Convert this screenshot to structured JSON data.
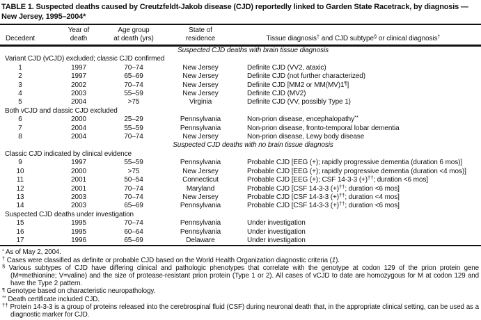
{
  "title": {
    "line1": "TABLE 1. Suspected deaths caused by Creutzfeldt-Jakob disease (CJD) reportedly linked to Garden State Racetrack, by diagnosis —",
    "line2": "New Jersey, 1995–2004*"
  },
  "table": {
    "columns": [
      "Decedent",
      "Year of\ndeath",
      "Age group\nat death (yrs)",
      "State of\nresidence",
      "Tissue diagnosis^{†} and CJD subtype^{§} or clinical diagnosis^{†}"
    ],
    "sections": [
      {
        "heading": "Suspected CJD deaths with brain tissue diagnosis",
        "groups": [
          {
            "label": "Variant CJD (vCJD) excluded; classic CJD confirmed",
            "rows": [
              {
                "decedent": "1",
                "year": "1997",
                "age": "70–74",
                "state": "New Jersey",
                "diagnosis": "Definite CJD (VV2, ataxic)"
              },
              {
                "decedent": "2",
                "year": "1997",
                "age": "65–69",
                "state": "New Jersey",
                "diagnosis": "Definite CJD (not further characterized)"
              },
              {
                "decedent": "3",
                "year": "2002",
                "age": "70–74",
                "state": "New Jersey",
                "diagnosis": "Definite CJD [MM2 or MM(MV)1^{¶}]"
              },
              {
                "decedent": "4",
                "year": "2003",
                "age": "55–59",
                "state": "New Jersey",
                "diagnosis": "Definite CJD (MV2)"
              },
              {
                "decedent": "5",
                "year": "2004",
                "age": ">75",
                "state": "Virginia",
                "diagnosis": "Definite CJD (VV, possibly Type 1)"
              }
            ]
          },
          {
            "label": "Both vCJD and classic CJD excluded",
            "rows": [
              {
                "decedent": "6",
                "year": "2000",
                "age": "25–29",
                "state": "Pennsylvania",
                "diagnosis": "Non-prion disease, encephalopathy^{**}"
              },
              {
                "decedent": "7",
                "year": "2004",
                "age": "55–59",
                "state": "Pennsylvania",
                "diagnosis": "Non-prion disease, fronto-temporal lobar dementia"
              },
              {
                "decedent": "8",
                "year": "2004",
                "age": "70–74",
                "state": "New Jersey",
                "diagnosis": "Non-prion disease, Lewy body disease"
              }
            ]
          }
        ]
      },
      {
        "heading": "Suspected CJD deaths with no brain tissue diagnosis",
        "groups": [
          {
            "label": "Classic CJD indicated by clinical evidence",
            "rows": [
              {
                "decedent": "9",
                "year": "1997",
                "age": "55–59",
                "state": "Pennsylvania",
                "diagnosis": "Probable CJD [EEG (+); rapidly progressive dementia (duration 6 mos)]"
              },
              {
                "decedent": "10",
                "year": "2000",
                "age": ">75",
                "state": "New Jersey",
                "diagnosis": "Probable CJD [EEG (+); rapidly progressive dementia (duration <4 mos)]"
              },
              {
                "decedent": "11",
                "year": "2001",
                "age": "50–54",
                "state": "Connecticut",
                "diagnosis": "Probable CJD [EEG (+); CSF 14-3-3 (+)^{††}; duration <6 mos]"
              },
              {
                "decedent": "12",
                "year": "2001",
                "age": "70–74",
                "state": "Maryland",
                "diagnosis": "Probable CJD [CSF 14-3-3 (+)^{††}; duration <6 mos]"
              },
              {
                "decedent": "13",
                "year": "2003",
                "age": "70–74",
                "state": "New Jersey",
                "diagnosis": "Probable CJD [CSF 14-3-3 (+)^{††}; duration <4 mos]"
              },
              {
                "decedent": "14",
                "year": "2003",
                "age": "65–69",
                "state": "Pennsylvania",
                "diagnosis": "Probable CJD [CSF 14-3-3 (+)^{††}; duration <6 mos]"
              }
            ]
          },
          {
            "label": "Suspected CJD deaths under investigation",
            "rows": [
              {
                "decedent": "15",
                "year": "1995",
                "age": "70–74",
                "state": "Pennsylvania",
                "diagnosis": "Under investigation"
              },
              {
                "decedent": "16",
                "year": "1995",
                "age": "60–64",
                "state": "Pennsylvania",
                "diagnosis": "Under investigation"
              },
              {
                "decedent": "17",
                "year": "1996",
                "age": "65–69",
                "state": "Delaware",
                "diagnosis": "Under investigation"
              }
            ]
          }
        ]
      }
    ]
  },
  "footnotes": [
    {
      "marker": "*",
      "text": "As of May 2, 2004."
    },
    {
      "marker": "†",
      "text": "Cases were classified as definite or probable CJD based on the World Health Organization diagnostic criteria (_{1})."
    },
    {
      "marker": "§",
      "text": "Various subtypes of CJD have differing clinical and pathologic phenotypes that correlate with the genotype at codon 129 of the prion protein gene (M=methionine; V=valine) and the size of protease-resistant prion protein (Type 1 or 2). All cases of vCJD to date are homozygous for M at codon 129 and have the Type 2 pattern."
    },
    {
      "marker": "¶",
      "text": "Genotype based on characteristic neuropathology."
    },
    {
      "marker": "**",
      "text": "Death certificate included CJD."
    },
    {
      "marker": "††",
      "text": "Protein 14-3-3 is a group of proteins released into the cerebrospinal fluid (CSF) during neuronal death that, in the appropriate clinical setting, can be used as a diagnostic marker for CJD."
    }
  ],
  "colors": {
    "text": "#111111",
    "background": "#ffffff",
    "rule": "#111111"
  }
}
